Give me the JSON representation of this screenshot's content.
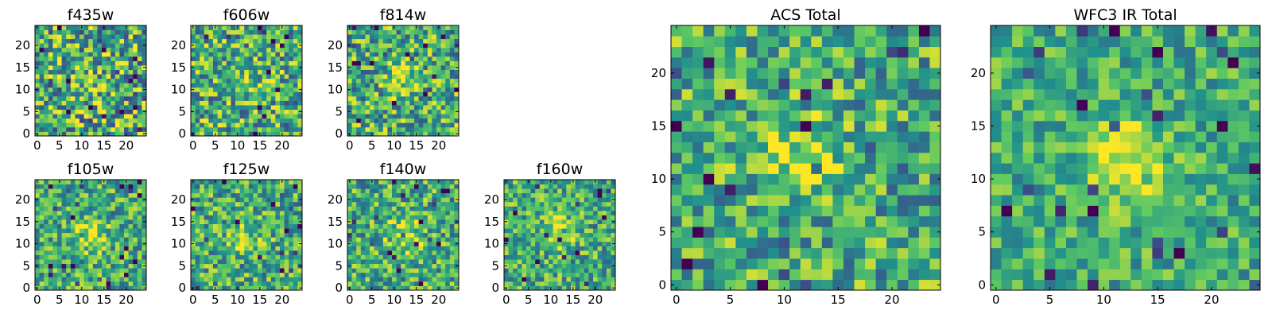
{
  "figure": {
    "background": "#ffffff",
    "colormap": "viridis",
    "colormap_stops": [
      "#440154",
      "#3b528b",
      "#21918c",
      "#5ec962",
      "#fde725"
    ]
  },
  "chart_data": [
    {
      "type": "heatmap",
      "title": "f435w",
      "grid_size": 25,
      "xticks": [
        "0",
        "5",
        "10",
        "15",
        "20"
      ],
      "yticks": [
        "0",
        "5",
        "10",
        "15",
        "20"
      ],
      "peak_center": [
        12,
        12
      ],
      "peak_strength": 0.08,
      "noise_level": 0.42,
      "value_scale": "normalized 0-1 (viridis)"
    },
    {
      "type": "heatmap",
      "title": "f606w",
      "grid_size": 25,
      "xticks": [
        "0",
        "5",
        "10",
        "15",
        "20"
      ],
      "yticks": [
        "0",
        "5",
        "10",
        "15",
        "20"
      ],
      "peak_center": [
        12,
        12
      ],
      "peak_strength": 0.22,
      "noise_level": 0.38,
      "value_scale": "normalized 0-1 (viridis)"
    },
    {
      "type": "heatmap",
      "title": "f814w",
      "grid_size": 25,
      "xticks": [
        "0",
        "5",
        "10",
        "15",
        "20"
      ],
      "yticks": [
        "0",
        "5",
        "10",
        "15",
        "20"
      ],
      "peak_center": [
        12,
        12
      ],
      "peak_strength": 0.25,
      "noise_level": 0.36,
      "value_scale": "normalized 0-1 (viridis)"
    },
    {
      "type": "heatmap",
      "title": "f105w",
      "grid_size": 25,
      "xticks": [
        "0",
        "5",
        "10",
        "15",
        "20"
      ],
      "yticks": [
        "0",
        "5",
        "10",
        "15",
        "20"
      ],
      "peak_center": [
        12,
        12
      ],
      "peak_strength": 0.3,
      "noise_level": 0.3,
      "value_scale": "normalized 0-1 (viridis)"
    },
    {
      "type": "heatmap",
      "title": "f125w",
      "grid_size": 25,
      "xticks": [
        "0",
        "5",
        "10",
        "15",
        "20"
      ],
      "yticks": [
        "0",
        "5",
        "10",
        "15",
        "20"
      ],
      "peak_center": [
        12,
        11
      ],
      "peak_strength": 0.28,
      "noise_level": 0.32,
      "value_scale": "normalized 0-1 (viridis)"
    },
    {
      "type": "heatmap",
      "title": "f140w",
      "grid_size": 25,
      "xticks": [
        "0",
        "5",
        "10",
        "15",
        "20"
      ],
      "yticks": [
        "0",
        "5",
        "10",
        "15",
        "20"
      ],
      "peak_center": [
        12,
        12
      ],
      "peak_strength": 0.3,
      "noise_level": 0.32,
      "value_scale": "normalized 0-1 (viridis)"
    },
    {
      "type": "heatmap",
      "title": "f160w",
      "grid_size": 25,
      "xticks": [
        "0",
        "5",
        "10",
        "15",
        "20"
      ],
      "yticks": [
        "0",
        "5",
        "10",
        "15",
        "20"
      ],
      "peak_center": [
        12,
        13
      ],
      "peak_strength": 0.32,
      "noise_level": 0.3,
      "value_scale": "normalized 0-1 (viridis)"
    },
    {
      "type": "heatmap",
      "title": "ACS Total",
      "grid_size": 25,
      "xticks": [
        "0",
        "5",
        "10",
        "15",
        "20"
      ],
      "yticks": [
        "0",
        "5",
        "10",
        "15",
        "20"
      ],
      "peak_center": [
        12,
        12
      ],
      "peak_strength": 0.3,
      "noise_level": 0.32,
      "value_scale": "normalized 0-1 (viridis)"
    },
    {
      "type": "heatmap",
      "title": "WFC3 IR Total",
      "grid_size": 25,
      "xticks": [
        "0",
        "5",
        "10",
        "15",
        "20"
      ],
      "yticks": [
        "0",
        "5",
        "10",
        "15",
        "20"
      ],
      "peak_center": [
        12,
        12
      ],
      "peak_strength": 0.42,
      "noise_level": 0.24,
      "value_scale": "normalized 0-1 (viridis)"
    }
  ]
}
